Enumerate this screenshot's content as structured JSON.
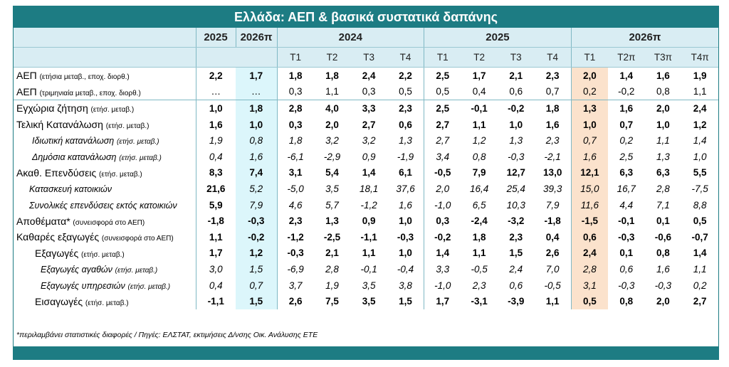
{
  "header": {
    "title": "Ελλάδα: ΑΕΠ & βασικά συστατικά δαπάνης"
  },
  "table": {
    "year_headers": [
      "2025",
      "2026π",
      "2024",
      "2025",
      "2026π"
    ],
    "quarter_headers": [
      "Τ1",
      "Τ2",
      "Τ3",
      "Τ4",
      "Τ1",
      "Τ2",
      "Τ3",
      "Τ4",
      "Τ1",
      "Τ2π",
      "Τ3π",
      "Τ4π"
    ],
    "rows": [
      {
        "label": "ΑΕΠ",
        "unit": "(ετήσια μεταβ., εποχ. διορθ.)",
        "values": [
          "2,2",
          "1,7",
          "1,8",
          "1,8",
          "2,4",
          "2,2",
          "2,5",
          "1,7",
          "2,1",
          "2,3",
          "2,0",
          "1,4",
          "1,6",
          "1,9"
        ]
      },
      {
        "label": "ΑΕΠ",
        "unit": "(τριμηνιαία μεταβ., εποχ. διορθ.)",
        "values": [
          "…",
          "…",
          "0,3",
          "1,1",
          "0,3",
          "0,5",
          "0,5",
          "0,4",
          "0,6",
          "0,7",
          "0,2",
          "-0,2",
          "0,8",
          "1,1"
        ]
      },
      {
        "label": "Εγχώρια ζήτηση",
        "unit": "(ετήσ. μεταβ.)",
        "values": [
          "1,0",
          "1,8",
          "2,8",
          "4,0",
          "3,3",
          "2,3",
          "2,5",
          "-0,1",
          "-0,2",
          "1,8",
          "1,3",
          "1,6",
          "2,0",
          "2,4"
        ]
      },
      {
        "label": "Τελική Κατανάλωση",
        "unit": "(ετήσ. μεταβ.)",
        "values": [
          "1,6",
          "1,0",
          "0,3",
          "2,0",
          "2,7",
          "0,6",
          "2,7",
          "1,1",
          "1,0",
          "1,6",
          "1,0",
          "0,7",
          "1,0",
          "1,2"
        ]
      },
      {
        "label": "Ιδιωτική κατανάλωση",
        "unit": "(ετήσ. μεταβ.)",
        "values": [
          "1,9",
          "0,8",
          "1,8",
          "3,2",
          "3,2",
          "1,3",
          "2,7",
          "1,2",
          "1,3",
          "2,3",
          "0,7",
          "0,2",
          "1,1",
          "1,4"
        ]
      },
      {
        "label": "Δημόσια κατανάλωση",
        "unit": "(ετήσ. μεταβ.)",
        "values": [
          "0,4",
          "1,6",
          "-6,1",
          "-2,9",
          "0,9",
          "-1,9",
          "3,4",
          "0,8",
          "-0,3",
          "-2,1",
          "1,6",
          "2,5",
          "1,3",
          "1,0"
        ]
      },
      {
        "label": "Ακαθ. Επενδύσεις",
        "unit": "(ετήσ. μεταβ.)",
        "values": [
          "8,3",
          "7,4",
          "3,1",
          "5,4",
          "1,4",
          "6,1",
          "-0,5",
          "7,9",
          "12,7",
          "13,0",
          "12,1",
          "6,3",
          "6,3",
          "5,5"
        ]
      },
      {
        "label": "Κατασκευή κατοικιών",
        "values": [
          "21,6",
          "5,2",
          "-5,0",
          "3,5",
          "18,1",
          "37,6",
          "2,0",
          "16,4",
          "25,4",
          "39,3",
          "15,0",
          "16,7",
          "2,8",
          "-7,5"
        ]
      },
      {
        "label": "Συνολικές επενδύσεις εκτός κατοικιών",
        "values": [
          "5,9",
          "7,9",
          "4,6",
          "5,7",
          "-1,2",
          "1,6",
          "-1,0",
          "6,5",
          "10,3",
          "7,9",
          "11,6",
          "4,4",
          "7,1",
          "8,8"
        ]
      },
      {
        "label": "Αποθέματα*",
        "unit": "(συνεισφορά στο ΑΕΠ)",
        "values": [
          "-1,8",
          "-0,3",
          "2,3",
          "1,3",
          "0,9",
          "1,0",
          "0,3",
          "-2,4",
          "-3,2",
          "-1,8",
          "-1,5",
          "-0,1",
          "0,1",
          "0,5"
        ]
      },
      {
        "label": "Καθαρές εξαγωγές",
        "unit": "(συνεισφορά στο ΑΕΠ)",
        "values": [
          "1,1",
          "-0,2",
          "-1,2",
          "-2,5",
          "-1,1",
          "-0,3",
          "-0,2",
          "1,8",
          "2,3",
          "0,4",
          "0,6",
          "-0,3",
          "-0,6",
          "-0,7"
        ]
      },
      {
        "label": "Εξαγωγές",
        "unit": "(ετήσ. μεταβ.)",
        "values": [
          "1,7",
          "1,2",
          "-0,3",
          "2,1",
          "1,1",
          "1,0",
          "1,4",
          "1,1",
          "1,5",
          "2,6",
          "2,4",
          "0,1",
          "0,8",
          "1,4"
        ]
      },
      {
        "label": "Εξαγωγές αγαθών",
        "unit": "(ετήσ. μεταβ.)",
        "values": [
          "3,0",
          "1,5",
          "-6,9",
          "2,8",
          "-0,1",
          "-0,4",
          "3,3",
          "-0,5",
          "2,4",
          "7,0",
          "2,8",
          "0,6",
          "1,6",
          "1,1"
        ]
      },
      {
        "label": "Εξαγωγές υπηρεσιών",
        "unit": "(ετήσ. μεταβ.)",
        "values": [
          "0,4",
          "0,7",
          "3,7",
          "1,9",
          "3,5",
          "3,8",
          "-1,0",
          "2,3",
          "0,6",
          "-0,5",
          "3,1",
          "-0,3",
          "-0,3",
          "0,2"
        ]
      },
      {
        "label": "Εισαγωγές",
        "unit": "(ετήσ. μεταβ.)",
        "values": [
          "-1,1",
          "1,5",
          "2,6",
          "7,5",
          "3,5",
          "1,5",
          "1,7",
          "-3,1",
          "-3,9",
          "1,1",
          "0,5",
          "0,8",
          "2,0",
          "2,7"
        ]
      }
    ]
  },
  "footer": {
    "note": "*περιλαμβάνει στατιστικές διαφορές / Πηγές: ΕΛΣΤΑΤ, εκτιμήσεις Δ/νσης Οικ. Ανάλυσης ΕΤΕ"
  }
}
